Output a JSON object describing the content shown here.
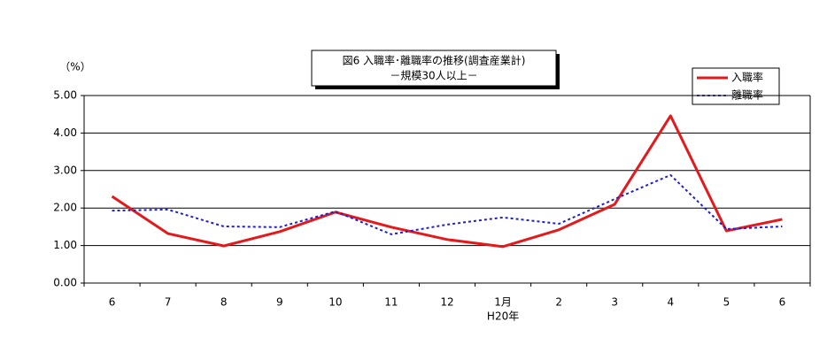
{
  "chart_data": {
    "type": "line",
    "title": "図6  入職率･離職率の推移(調査産業計)",
    "subtitle": "－規模30人以上－",
    "ylabel": "（%）",
    "x_annotation": "H20年",
    "categories": [
      "6",
      "7",
      "8",
      "9",
      "10",
      "11",
      "12",
      "1月",
      "2",
      "3",
      "4",
      "5",
      "6"
    ],
    "series": [
      {
        "name": "入職率",
        "color": "#e31a1c",
        "style": "solid",
        "values": [
          2.31,
          1.32,
          0.99,
          1.37,
          1.89,
          1.49,
          1.16,
          0.97,
          1.42,
          2.1,
          4.46,
          1.39,
          1.7
        ]
      },
      {
        "name": "離職率",
        "color": "#1f1fcf",
        "style": "dotted",
        "values": [
          1.93,
          1.96,
          1.51,
          1.49,
          1.91,
          1.3,
          1.56,
          1.75,
          1.58,
          2.24,
          2.88,
          1.44,
          1.51
        ]
      }
    ],
    "ylim": [
      0,
      5
    ],
    "yticks": [
      {
        "value": 0,
        "label": "0.00"
      },
      {
        "value": 1,
        "label": "1.00"
      },
      {
        "value": 2,
        "label": "2.00"
      },
      {
        "value": 3,
        "label": "3.00"
      },
      {
        "value": 4,
        "label": "4.00"
      },
      {
        "value": 5,
        "label": "5.00"
      }
    ],
    "grid": true,
    "legend": "top-right"
  }
}
